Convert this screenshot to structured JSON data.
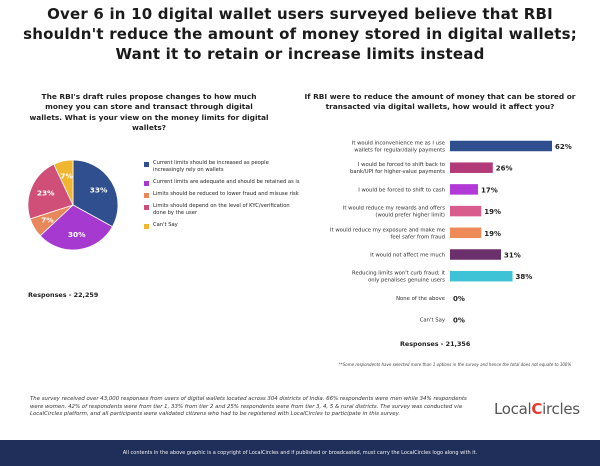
{
  "headline": "Over 6 in 10 digital wallet users surveyed believe that RBI shouldn't reduce the amount of money stored in digital wallets; Want it to retain or increase limits instead",
  "left_question": "The RBI's draft rules propose changes to how much money you can store and transact through digital wallets. What is your view on the money limits for digital wallets?",
  "right_question": "If RBI were to reduce the amount of money that can be stored or transacted via digital wallets, how would it affect you?",
  "left_responses": "Responses - 22,259",
  "right_responses": "Responses - 21,356",
  "footnote": "**Some respondents have selected more than 1 options in the survey and hence the total does not equate to 100%",
  "survey_note": "The survey received over 43,000 responses from users of digital wallets located across 304 districts of India. 66% respondents were men while 34% respondents were women. 42% of respondents were from tier 1, 33% from tier 2 and 25% respondents were from tier 3, 4, 5 & rural districts. The survey was conducted via LocalCircles platform, and all participants were validated citizens who had to be registered with LocalCircles to participate in this survey.",
  "logo": {
    "part1": "Local",
    "part2": "C",
    "part3": "ircles"
  },
  "footer": "All contents in the above graphic is a copyright of LocalCircles and if published or broadcasted, must carry the LocalCircles logo along with it.",
  "chart_data": [
    {
      "type": "pie",
      "slices": [
        {
          "label": "Current limits should be increased as people increasingly rely on wallets",
          "value": 33,
          "value_label": "33%",
          "color": "#2f4f8f"
        },
        {
          "label": "Current limits are adequate and should be retained as is",
          "value": 30,
          "value_label": "30%",
          "color": "#a63ad0"
        },
        {
          "label": "Limits should be reduced to lower fraud and misuse risk",
          "value": 7,
          "value_label": "7%",
          "color": "#e8875a"
        },
        {
          "label": "Limits should depend on the level of KYC/verification done by the user",
          "value": 23,
          "value_label": "23%",
          "color": "#d04f78"
        },
        {
          "label": "Can't Say",
          "value": 7,
          "value_label": "7%",
          "color": "#f0b630"
        }
      ]
    },
    {
      "type": "bar",
      "orientation": "horizontal",
      "xlim": [
        0,
        62
      ],
      "bars": [
        {
          "label": "It would inconvenience me as I use wallets for regular/daily payments",
          "value": 62,
          "value_label": "62%",
          "color": "#2f4f8f"
        },
        {
          "label": "I would be forced to shift back to bank/UPI for higher-value payments",
          "value": 26,
          "value_label": "26%",
          "color": "#b23a78"
        },
        {
          "label": "I would be forced to shift to cash",
          "value": 17,
          "value_label": "17%",
          "color": "#b13ad6"
        },
        {
          "label": "It would reduce my rewards and offers (would prefer higher limit)",
          "value": 19,
          "value_label": "19%",
          "color": "#d85c8c"
        },
        {
          "label": "It would reduce my exposure and make me feel safer from fraud",
          "value": 19,
          "value_label": "19%",
          "color": "#ee8a58"
        },
        {
          "label": "It would not affect me much",
          "value": 31,
          "value_label": "31%",
          "color": "#6b2f6b"
        },
        {
          "label": "Reducing limits won't curb fraud; it only penalises genuine users",
          "value": 38,
          "value_label": "38%",
          "color": "#3ec3d6"
        },
        {
          "label": "None of the above",
          "value": 0,
          "value_label": "0%",
          "color": "#999999"
        },
        {
          "label": "Can't Say",
          "value": 0,
          "value_label": "0%",
          "color": "#999999"
        }
      ]
    }
  ]
}
